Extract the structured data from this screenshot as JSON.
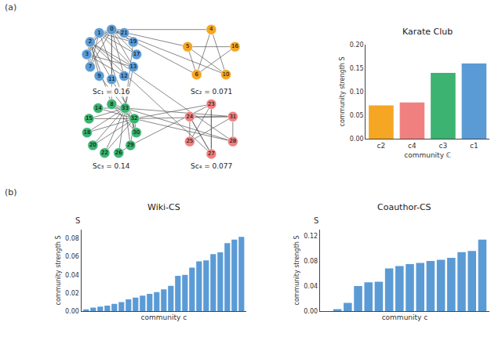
{
  "chart_data": [
    {
      "type": "network",
      "annotations": [
        "(a)"
      ],
      "groups": [
        {
          "label": "Sc₁ = 0.16",
          "color": "#5B9BD5",
          "nodes": [
            0,
            1,
            2,
            3,
            7,
            9,
            11,
            12,
            13,
            17,
            19,
            21
          ]
        },
        {
          "label": "Sc₂ = 0.071",
          "color": "#F5A623",
          "nodes": [
            4,
            5,
            6,
            10,
            16
          ]
        },
        {
          "label": "Sc₃ = 0.14",
          "color": "#3CB371",
          "nodes": [
            8,
            14,
            15,
            18,
            20,
            22,
            26,
            29,
            30,
            32,
            33
          ]
        },
        {
          "label": "Sc₄ = 0.077",
          "color": "#F08080",
          "nodes": [
            23,
            24,
            25,
            27,
            28,
            31
          ]
        }
      ],
      "edges": [
        [
          0,
          1
        ],
        [
          0,
          2
        ],
        [
          0,
          3
        ],
        [
          0,
          4
        ],
        [
          0,
          5
        ],
        [
          0,
          6
        ],
        [
          0,
          7
        ],
        [
          0,
          8
        ],
        [
          0,
          10
        ],
        [
          0,
          11
        ],
        [
          0,
          12
        ],
        [
          0,
          13
        ],
        [
          0,
          17
        ],
        [
          0,
          19
        ],
        [
          0,
          21
        ],
        [
          1,
          2
        ],
        [
          1,
          3
        ],
        [
          1,
          7
        ],
        [
          1,
          13
        ],
        [
          1,
          17
        ],
        [
          1,
          19
        ],
        [
          1,
          21
        ],
        [
          1,
          30
        ],
        [
          2,
          3
        ],
        [
          2,
          7
        ],
        [
          2,
          8
        ],
        [
          2,
          9
        ],
        [
          2,
          13
        ],
        [
          2,
          27
        ],
        [
          2,
          28
        ],
        [
          2,
          32
        ],
        [
          3,
          7
        ],
        [
          3,
          12
        ],
        [
          3,
          13
        ],
        [
          4,
          6
        ],
        [
          4,
          10
        ],
        [
          5,
          6
        ],
        [
          5,
          10
        ],
        [
          5,
          16
        ],
        [
          6,
          16
        ],
        [
          8,
          30
        ],
        [
          8,
          32
        ],
        [
          8,
          33
        ],
        [
          9,
          33
        ],
        [
          13,
          33
        ],
        [
          14,
          32
        ],
        [
          14,
          33
        ],
        [
          15,
          32
        ],
        [
          15,
          33
        ],
        [
          18,
          32
        ],
        [
          18,
          33
        ],
        [
          19,
          33
        ],
        [
          20,
          32
        ],
        [
          20,
          33
        ],
        [
          22,
          32
        ],
        [
          22,
          33
        ],
        [
          23,
          25
        ],
        [
          23,
          27
        ],
        [
          23,
          29
        ],
        [
          23,
          32
        ],
        [
          24,
          25
        ],
        [
          24,
          27
        ],
        [
          24,
          31
        ],
        [
          25,
          31
        ],
        [
          26,
          29
        ],
        [
          26,
          33
        ],
        [
          27,
          23
        ],
        [
          27,
          24
        ],
        [
          28,
          31
        ],
        [
          28,
          32
        ],
        [
          28,
          33
        ],
        [
          29,
          32
        ],
        [
          29,
          33
        ],
        [
          30,
          32
        ],
        [
          30,
          33
        ],
        [
          31,
          32
        ],
        [
          31,
          33
        ]
      ]
    },
    {
      "type": "bar",
      "title": "Karate Club",
      "x_label": "community ℂ",
      "y_label": "community strength S",
      "categories": [
        "c2",
        "c4",
        "c3",
        "c1"
      ],
      "values": [
        0.071,
        0.077,
        0.14,
        0.16
      ],
      "colors": [
        "#F5A623",
        "#F08080",
        "#3CB371",
        "#5B9BD5"
      ],
      "ylim": [
        0,
        0.2
      ],
      "yticks": [
        {
          "value": 0,
          "label": "0.00"
        },
        0.05,
        {
          "value": 0.1,
          "label": "0.10"
        },
        0.15,
        {
          "value": 0.2,
          "label": "0.20"
        }
      ],
      "grid": false
    },
    {
      "type": "bar",
      "title": "Wiki-CS",
      "x_label": "community c",
      "y_label": "community strength S",
      "annotations": [
        "(b)",
        "S"
      ],
      "categories": [
        null,
        null,
        null,
        null,
        null,
        null,
        null,
        null,
        null,
        null,
        null,
        null,
        null,
        null,
        null,
        null,
        null,
        null,
        null,
        null,
        null,
        null,
        null
      ],
      "values": [
        0.002,
        0.004,
        0.005,
        0.006,
        0.008,
        0.01,
        0.013,
        0.015,
        0.017,
        0.019,
        0.021,
        0.024,
        0.028,
        0.039,
        0.04,
        0.048,
        0.055,
        0.056,
        0.063,
        0.065,
        0.075,
        0.079,
        0.082
      ],
      "color": "#5B9BD5",
      "ylim": [
        0,
        0.09
      ],
      "yticks": [
        {
          "value": 0,
          "label": "0.00"
        },
        0.02,
        0.04,
        0.06,
        0.08
      ],
      "tick_labels": "y",
      "grid": false
    },
    {
      "type": "bar",
      "title": "Coauthor-CS",
      "x_label": "community c",
      "y_label": "community strength S",
      "annotations": [
        "S"
      ],
      "categories": [
        null,
        null,
        null,
        null,
        null,
        null,
        null,
        null,
        null,
        null,
        null,
        null,
        null,
        null,
        null,
        null
      ],
      "values": [
        0.0,
        0.003,
        0.013,
        0.04,
        0.046,
        0.047,
        0.068,
        0.072,
        0.075,
        0.077,
        0.08,
        0.082,
        0.085,
        0.094,
        0.096,
        0.114
      ],
      "color": "#5B9BD5",
      "ylim": [
        0,
        0.13
      ],
      "yticks": [
        {
          "value": 0,
          "label": "0.00"
        },
        0.04,
        0.08,
        0.12
      ],
      "tick_labels": "y",
      "grid": false
    }
  ]
}
